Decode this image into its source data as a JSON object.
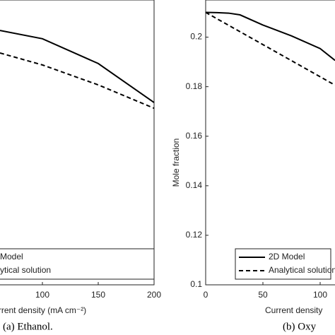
{
  "chart_data": [
    {
      "type": "line",
      "caption": "(a) Ethanol.",
      "xlabel": "rrent density (mA cm⁻²)",
      "xlim": [
        0,
        200
      ],
      "xticks": [
        100,
        150,
        200
      ],
      "ylim": [
        0,
        1
      ],
      "series": [
        {
          "name": "Model",
          "color": "#000000",
          "style": "solid",
          "x": [
            62,
            100,
            150,
            200
          ],
          "values": [
            0.893,
            0.864,
            0.777,
            0.64
          ]
        },
        {
          "name": "ytical solution",
          "color": "#000000",
          "style": "dashed",
          "x": [
            62,
            100,
            150,
            200
          ],
          "values": [
            0.814,
            0.772,
            0.702,
            0.62
          ]
        }
      ]
    },
    {
      "type": "line",
      "caption": "(b) Oxy",
      "xlabel": "Current density",
      "ylabel": "Mole fraction",
      "xlim": [
        0,
        200
      ],
      "xticks": [
        0,
        50,
        100
      ],
      "ylim": [
        0.1,
        0.215
      ],
      "yticks": [
        0.1,
        0.12,
        0.14,
        0.16,
        0.18,
        0.2
      ],
      "series": [
        {
          "name": "2D Model",
          "color": "#000000",
          "style": "solid",
          "x": [
            0,
            10,
            20,
            30,
            50,
            75,
            100,
            113
          ],
          "values": [
            0.21,
            0.2099,
            0.2097,
            0.209,
            0.2049,
            0.2005,
            0.1954,
            0.1906
          ]
        },
        {
          "name": "Analytical solution",
          "color": "#000000",
          "style": "dashed",
          "x": [
            0,
            50,
            100,
            113
          ],
          "values": [
            0.21,
            0.197,
            0.184,
            0.1806
          ]
        }
      ]
    }
  ]
}
